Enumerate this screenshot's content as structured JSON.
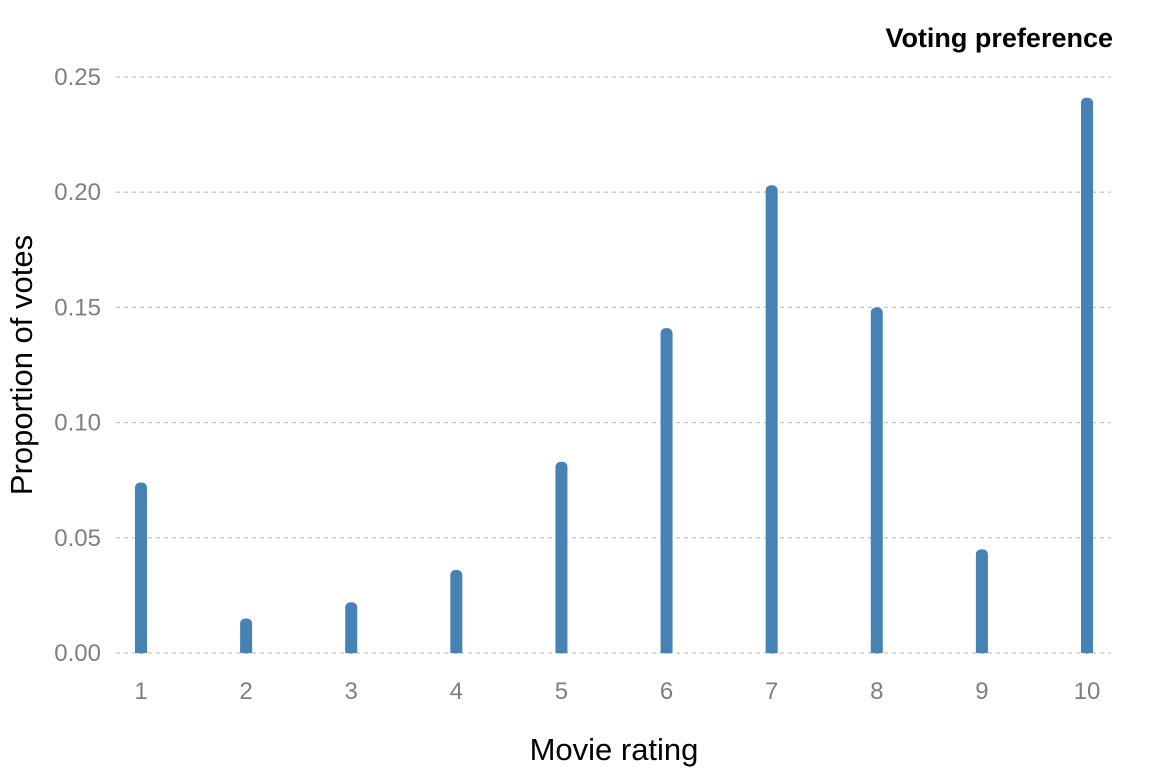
{
  "chart_data": {
    "type": "bar",
    "title": "Voting preference",
    "xlabel": "Movie rating",
    "ylabel": "Proportion of votes",
    "categories": [
      "1",
      "2",
      "3",
      "4",
      "5",
      "6",
      "7",
      "8",
      "9",
      "10"
    ],
    "values": [
      0.074,
      0.015,
      0.022,
      0.036,
      0.083,
      0.141,
      0.203,
      0.15,
      0.045,
      0.241
    ],
    "yticks": [
      "0.00",
      "0.05",
      "0.10",
      "0.15",
      "0.20",
      "0.25"
    ],
    "ylim": [
      0,
      0.25
    ],
    "grid": "horizontal dashed",
    "legend": "none",
    "colors": {
      "bar": "#4682b4",
      "grid": "#c8c8c8",
      "tick_text": "#7f7f7f"
    }
  }
}
